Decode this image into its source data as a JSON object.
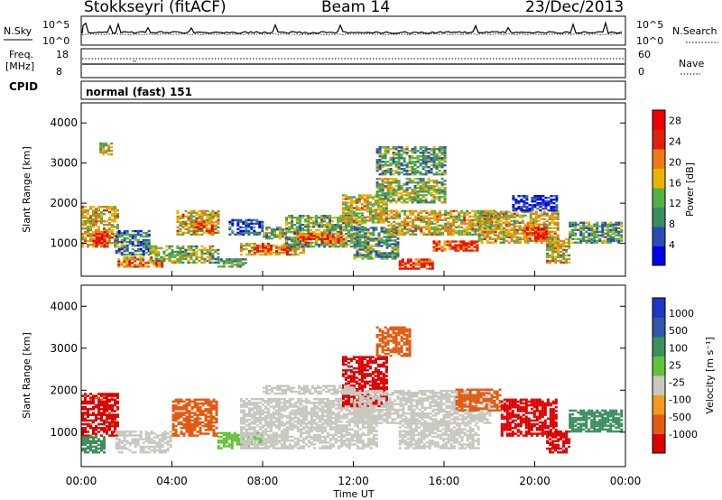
{
  "header": {
    "station": "Stokkseyri (fitACF)",
    "beam": "Beam 14",
    "date": "23/Dec/2013"
  },
  "panel_labels": {
    "nsky": "N.Sky",
    "nsearch": "N.Search",
    "freq": "Freq.",
    "freq_unit": "[MHz]",
    "nave": "Nave",
    "cpid": "CPID",
    "cpid_value": "normal (fast) 151"
  },
  "noise_axis": {
    "left_top": "10^5",
    "left_bottom": "10^0",
    "right_top": "10^5",
    "right_bottom": "10^0"
  },
  "freq_axis": {
    "left_top": "18",
    "left_bottom": "8",
    "right_top": "60",
    "right_bottom": "0"
  },
  "colors": {
    "power_scale": [
      "#0000ee",
      "#2b4bb4",
      "#3d8c62",
      "#58b045",
      "#e8b400",
      "#f07a12",
      "#e0200c",
      "#ee0000"
    ],
    "velocity_scale": [
      "#dd0000",
      "#e35b12",
      "#f39a22",
      "#c8c8c0",
      "#64c23a",
      "#3d8f5c",
      "#2f59a8",
      "#1f35c8"
    ]
  },
  "chart_data": [
    {
      "type": "heatmap",
      "name": "power",
      "ylabel": "Slant Range [km]",
      "ylim": [
        180,
        4500
      ],
      "yticks": [
        "1000",
        "2000",
        "3000",
        "4000"
      ],
      "xlim": [
        0,
        24
      ],
      "xticks": [
        "00:00",
        "04:00",
        "08:00",
        "12:00",
        "16:00",
        "20:00",
        "00:00"
      ],
      "colorbar": {
        "label": "Power [dB]",
        "ticks": [
          "4",
          "8",
          "12",
          "16",
          "20",
          "24",
          "28"
        ],
        "range": [
          0,
          30
        ]
      },
      "regions": [
        {
          "t": [
            0.0,
            1.6
          ],
          "r": [
            900,
            1900
          ],
          "level": 0.58
        },
        {
          "t": [
            0.5,
            1.1
          ],
          "r": [
            900,
            1300
          ],
          "level": 0.85
        },
        {
          "t": [
            1.5,
            3.0
          ],
          "r": [
            700,
            1300
          ],
          "level": 0.3
        },
        {
          "t": [
            1.6,
            3.6
          ],
          "r": [
            400,
            650
          ],
          "level": 0.7
        },
        {
          "t": [
            3.0,
            6.0
          ],
          "r": [
            500,
            950
          ],
          "level": 0.45
        },
        {
          "t": [
            4.2,
            6.0
          ],
          "r": [
            1200,
            1800
          ],
          "level": 0.55
        },
        {
          "t": [
            5.0,
            5.8
          ],
          "r": [
            1250,
            1550
          ],
          "level": 0.75
        },
        {
          "t": [
            6.0,
            7.3
          ],
          "r": [
            400,
            600
          ],
          "level": 0.4
        },
        {
          "t": [
            7.0,
            9.8
          ],
          "r": [
            700,
            1000
          ],
          "level": 0.6
        },
        {
          "t": [
            7.6,
            9.2
          ],
          "r": [
            780,
            920
          ],
          "level": 0.8
        },
        {
          "t": [
            8.0,
            9.0
          ],
          "r": [
            1100,
            1400
          ],
          "level": 0.45
        },
        {
          "t": [
            9.0,
            12.5
          ],
          "r": [
            900,
            1700
          ],
          "level": 0.4
        },
        {
          "t": [
            9.5,
            11.5
          ],
          "r": [
            1000,
            1250
          ],
          "level": 0.72
        },
        {
          "t": [
            11.5,
            13.5
          ],
          "r": [
            1500,
            2200
          ],
          "level": 0.55
        },
        {
          "t": [
            12.0,
            14.0
          ],
          "r": [
            600,
            1400
          ],
          "level": 0.35
        },
        {
          "t": [
            14.0,
            15.5
          ],
          "r": [
            350,
            600
          ],
          "level": 0.8
        },
        {
          "t": [
            13.5,
            18.5
          ],
          "r": [
            1200,
            1800
          ],
          "level": 0.55
        },
        {
          "t": [
            15.5,
            17.5
          ],
          "r": [
            800,
            1050
          ],
          "level": 0.75
        },
        {
          "t": [
            13.0,
            16.0
          ],
          "r": [
            2000,
            2600
          ],
          "level": 0.45
        },
        {
          "t": [
            13.0,
            16.0
          ],
          "r": [
            2700,
            3400
          ],
          "level": 0.35
        },
        {
          "t": [
            17.5,
            21.0
          ],
          "r": [
            1000,
            1800
          ],
          "level": 0.55
        },
        {
          "t": [
            19.5,
            20.5
          ],
          "r": [
            1100,
            1400
          ],
          "level": 0.8
        },
        {
          "t": [
            20.5,
            21.5
          ],
          "r": [
            500,
            1100
          ],
          "level": 0.55
        },
        {
          "t": [
            21.5,
            24.0
          ],
          "r": [
            1000,
            1500
          ],
          "level": 0.35
        },
        {
          "t": [
            19.0,
            21.0
          ],
          "r": [
            1800,
            2200
          ],
          "level": 0.1
        },
        {
          "t": [
            6.5,
            8.0
          ],
          "r": [
            1200,
            1600
          ],
          "level": 0.2
        },
        {
          "t": [
            0.8,
            1.3
          ],
          "r": [
            3200,
            3500
          ],
          "level": 0.5
        }
      ]
    },
    {
      "type": "heatmap",
      "name": "velocity",
      "ylabel": "Slant Range [km]",
      "ylim": [
        180,
        4500
      ],
      "yticks": [
        "1000",
        "2000",
        "3000",
        "4000"
      ],
      "xlim": [
        0,
        24
      ],
      "xticks": [
        "00:00",
        "04:00",
        "08:00",
        "12:00",
        "16:00",
        "20:00",
        "00:00"
      ],
      "xlabel": "Time UT",
      "colorbar": {
        "label": "Velocity [m s⁻¹]",
        "ticks": [
          "1000",
          "500",
          "100",
          "25",
          "-25",
          "-100",
          "-500",
          "-1000"
        ]
      },
      "regions": [
        {
          "t": [
            0.0,
            1.6
          ],
          "r": [
            900,
            1900
          ],
          "value": -300
        },
        {
          "t": [
            0.0,
            1.0
          ],
          "r": [
            500,
            900
          ],
          "value": 80
        },
        {
          "t": [
            1.5,
            4.0
          ],
          "r": [
            500,
            1000
          ],
          "value": 0
        },
        {
          "t": [
            4.0,
            6.0
          ],
          "r": [
            900,
            1800
          ],
          "value": -200
        },
        {
          "t": [
            6.0,
            8.0
          ],
          "r": [
            600,
            1000
          ],
          "value": 30
        },
        {
          "t": [
            7.0,
            13.0
          ],
          "r": [
            600,
            1800
          ],
          "value": 0
        },
        {
          "t": [
            11.5,
            13.5
          ],
          "r": [
            1600,
            2800
          ],
          "value": -400
        },
        {
          "t": [
            12.0,
            18.0
          ],
          "r": [
            1200,
            2000
          ],
          "value": 0
        },
        {
          "t": [
            14.0,
            17.5
          ],
          "r": [
            600,
            1200
          ],
          "value": 0
        },
        {
          "t": [
            16.5,
            18.5
          ],
          "r": [
            1500,
            2000
          ],
          "value": -200
        },
        {
          "t": [
            18.5,
            21.0
          ],
          "r": [
            900,
            1800
          ],
          "value": -350
        },
        {
          "t": [
            20.5,
            21.5
          ],
          "r": [
            500,
            1000
          ],
          "value": -500
        },
        {
          "t": [
            21.5,
            24.0
          ],
          "r": [
            1000,
            1500
          ],
          "value": 80
        },
        {
          "t": [
            8.0,
            12.0
          ],
          "r": [
            1900,
            2100
          ],
          "value": 0
        },
        {
          "t": [
            13.0,
            14.5
          ],
          "r": [
            2800,
            3500
          ],
          "value": -200
        }
      ]
    }
  ]
}
